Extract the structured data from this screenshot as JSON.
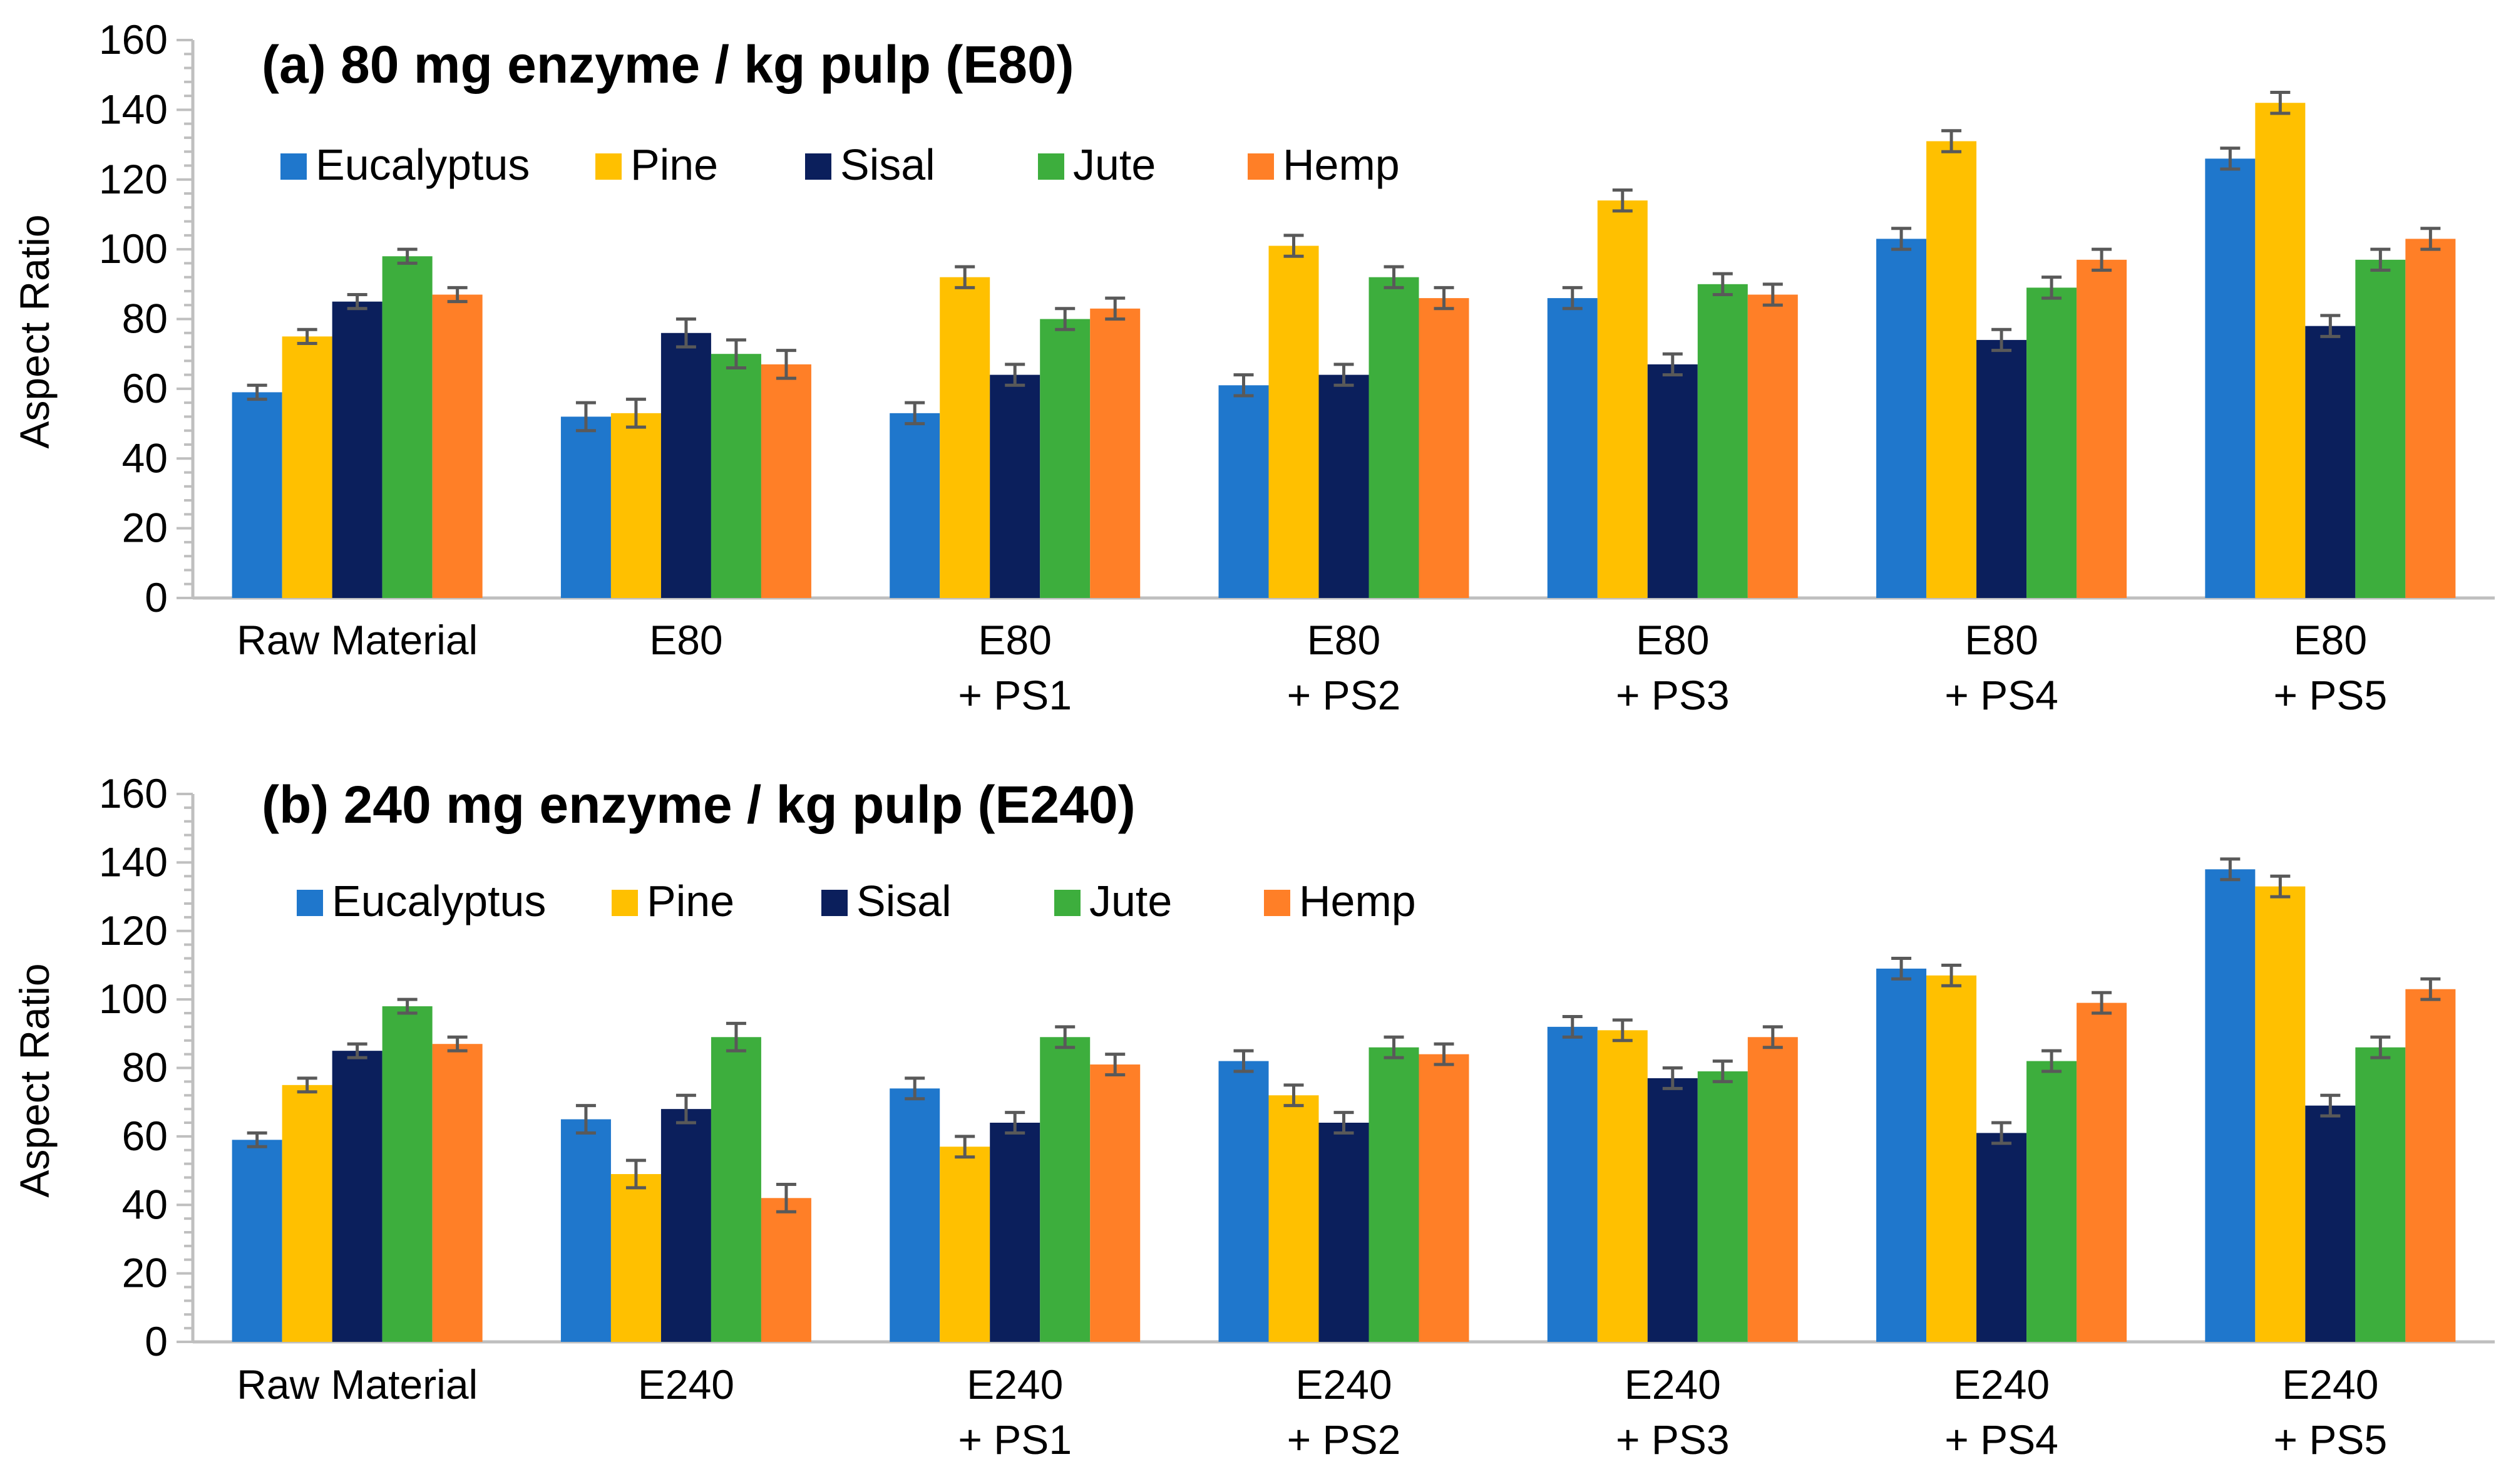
{
  "colors": {
    "Eucalyptus": "#1F77CC",
    "Pine": "#FFC000",
    "Sisal": "#0B1F5C",
    "Jute": "#3DAE3D",
    "Hemp": "#FF7F27",
    "axis": "#BFBFBF",
    "error": "#595959",
    "text": "#000000"
  },
  "chart_data": [
    {
      "type": "bar",
      "title": "(a) 80 mg enzyme / kg pulp (E80)",
      "xlabel": "",
      "ylabel": "Aspect Ratio",
      "ylim": [
        0,
        160
      ],
      "yticks": [
        0,
        20,
        40,
        60,
        80,
        100,
        120,
        140,
        160
      ],
      "grid": false,
      "legend_position": "top-left",
      "categories": [
        [
          "Raw Material"
        ],
        [
          "E80"
        ],
        [
          "E80",
          "+ PS1"
        ],
        [
          "E80",
          "+ PS2"
        ],
        [
          "E80",
          "+ PS3"
        ],
        [
          "E80",
          "+ PS4"
        ],
        [
          "E80",
          "+ PS5"
        ]
      ],
      "series": [
        {
          "name": "Eucalyptus",
          "values": [
            59,
            52,
            53,
            61,
            86,
            103,
            126
          ],
          "errors": [
            2,
            4,
            3,
            3,
            3,
            3,
            3
          ]
        },
        {
          "name": "Pine",
          "values": [
            75,
            53,
            92,
            101,
            114,
            131,
            142
          ],
          "errors": [
            2,
            4,
            3,
            3,
            3,
            3,
            3
          ]
        },
        {
          "name": "Sisal",
          "values": [
            85,
            76,
            64,
            64,
            67,
            74,
            78
          ],
          "errors": [
            2,
            4,
            3,
            3,
            3,
            3,
            3
          ]
        },
        {
          "name": "Jute",
          "values": [
            98,
            70,
            80,
            92,
            90,
            89,
            97
          ],
          "errors": [
            2,
            4,
            3,
            3,
            3,
            3,
            3
          ]
        },
        {
          "name": "Hemp",
          "values": [
            87,
            67,
            83,
            86,
            87,
            97,
            103
          ],
          "errors": [
            2,
            4,
            3,
            3,
            3,
            3,
            3
          ]
        }
      ]
    },
    {
      "type": "bar",
      "title": "(b) 240 mg enzyme / kg pulp (E240)",
      "xlabel": "",
      "ylabel": "Aspect Ratio",
      "ylim": [
        0,
        160
      ],
      "yticks": [
        0,
        20,
        40,
        60,
        80,
        100,
        120,
        140,
        160
      ],
      "grid": false,
      "legend_position": "top-left",
      "categories": [
        [
          "Raw Material"
        ],
        [
          "E240"
        ],
        [
          "E240",
          "+ PS1"
        ],
        [
          "E240",
          "+ PS2"
        ],
        [
          "E240",
          "+ PS3"
        ],
        [
          "E240",
          "+ PS4"
        ],
        [
          "E240",
          "+ PS5"
        ]
      ],
      "series": [
        {
          "name": "Eucalyptus",
          "values": [
            59,
            65,
            74,
            82,
            92,
            109,
            138
          ],
          "errors": [
            2,
            4,
            3,
            3,
            3,
            3,
            3
          ]
        },
        {
          "name": "Pine",
          "values": [
            75,
            49,
            57,
            72,
            91,
            107,
            133
          ],
          "errors": [
            2,
            4,
            3,
            3,
            3,
            3,
            3
          ]
        },
        {
          "name": "Sisal",
          "values": [
            85,
            68,
            64,
            64,
            77,
            61,
            69
          ],
          "errors": [
            2,
            4,
            3,
            3,
            3,
            3,
            3
          ]
        },
        {
          "name": "Jute",
          "values": [
            98,
            89,
            89,
            86,
            79,
            82,
            86
          ],
          "errors": [
            2,
            4,
            3,
            3,
            3,
            3,
            3
          ]
        },
        {
          "name": "Hemp",
          "values": [
            87,
            42,
            81,
            84,
            89,
            99,
            103
          ],
          "errors": [
            2,
            4,
            3,
            3,
            3,
            3,
            3
          ]
        }
      ]
    }
  ]
}
